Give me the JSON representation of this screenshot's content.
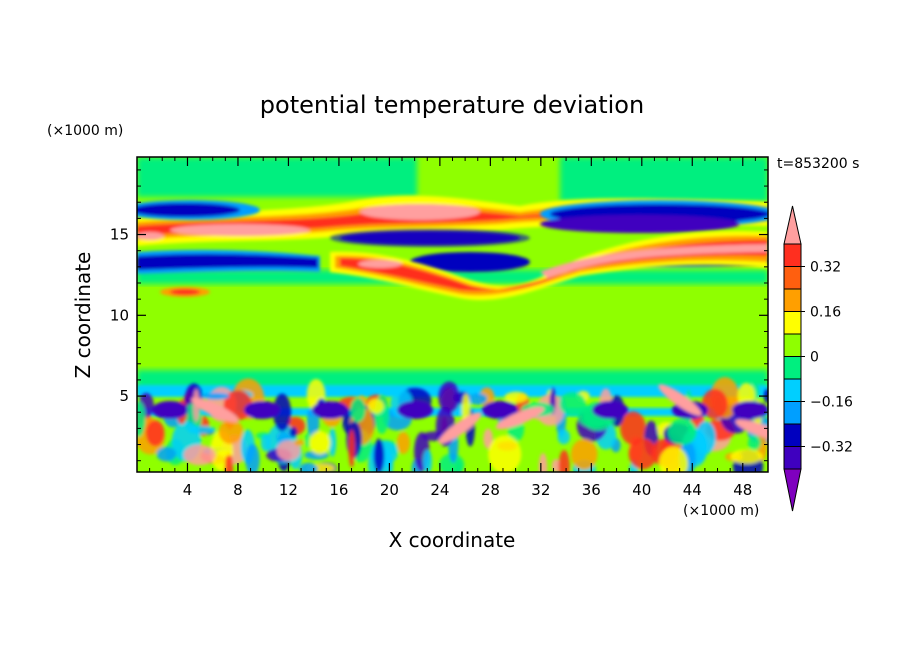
{
  "chart_data": {
    "type": "heatmap",
    "title": "potential temperature deviation",
    "time_label": "t=853200 s",
    "xlabel": "X coordinate",
    "ylabel": "Z coordinate",
    "x_unit": "(×1000 m)",
    "y_unit": "(×1000 m)",
    "xlim": [
      0,
      50
    ],
    "ylim": [
      0.3,
      19.8
    ],
    "x_ticks": [
      4,
      8,
      12,
      16,
      20,
      24,
      28,
      32,
      36,
      40,
      44,
      48
    ],
    "y_ticks": [
      5,
      10,
      15
    ],
    "colorbar": {
      "levels": [
        -0.4,
        -0.32,
        -0.24,
        -0.16,
        -0.08,
        0,
        0.08,
        0.16,
        0.24,
        0.32,
        0.4
      ],
      "labeled_ticks": [
        0.32,
        0.16,
        0,
        -0.16,
        -0.32
      ],
      "labels": [
        "0.32",
        "0.16",
        "0",
        "−0.16",
        "−0.32"
      ],
      "colors": [
        "#ff9f9f",
        "#ff2f1f",
        "#ff5f0f",
        "#ff9f00",
        "#ffff00",
        "#8fff00",
        "#00ef7f",
        "#00cfff",
        "#009fff",
        "#0000bf",
        "#3f00bf",
        "#7f00bf"
      ]
    },
    "features": [
      {
        "name": "upper warm band",
        "x": [
          0,
          50
        ],
        "z": [
          14.5,
          17.5
        ],
        "value": 0.4
      },
      {
        "name": "upper cold band west",
        "x": [
          0,
          12
        ],
        "z": [
          15.8,
          16.8
        ],
        "value": -0.4
      },
      {
        "name": "upper cold band east",
        "x": [
          30,
          50
        ],
        "z": [
          15.5,
          16.8
        ],
        "value": -0.4
      },
      {
        "name": "mid cold band",
        "x": [
          0,
          28
        ],
        "z": [
          12.8,
          14.0
        ],
        "value": -0.36
      },
      {
        "name": "rising warm tongue",
        "x": [
          16,
          50
        ],
        "z": [
          11.5,
          15.0
        ],
        "value": 0.4
      },
      {
        "name": "boundary layer cells",
        "x": [
          0,
          50
        ],
        "z": [
          0.3,
          5.5
        ],
        "value_range": [
          -0.4,
          0.4
        ]
      }
    ]
  }
}
